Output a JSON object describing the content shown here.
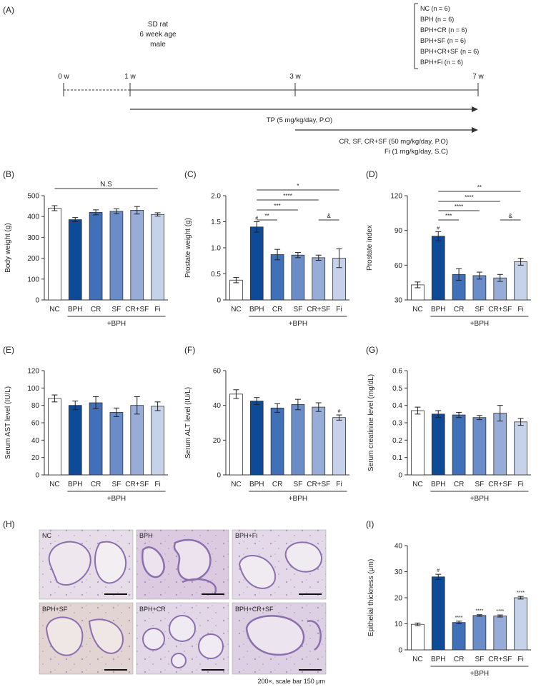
{
  "panel_labels": [
    "(A)",
    "(B)",
    "(C)",
    "(D)",
    "(E)",
    "(F)",
    "(G)",
    "(H)",
    "(I)"
  ],
  "timeline": {
    "animal": [
      "SD rat",
      "6 week age",
      "male"
    ],
    "groups": [
      "NC (n = 6)",
      "BPH (n = 6)",
      "BPH+CR (n = 6)",
      "BPH+SF (n = 6)",
      "BPH+CR+SF (n = 6)",
      "BPH+Fi (n = 6)"
    ],
    "weeks": [
      "0 w",
      "1 w",
      "3 w",
      "7 w"
    ],
    "tp_label": "TP (5 mg/kg/day, P.O)",
    "treatment_label": "CR, SF, CR+SF (50 mg/kg/day, P.O)",
    "fi_label": "Fi (1 mg/kg/day, S.C)"
  },
  "colors": {
    "bars": [
      "#ffffff",
      "#0d4a98",
      "#3f70b8",
      "#6a8cc9",
      "#97acd7",
      "#c6d1ea"
    ],
    "outline": "#333333"
  },
  "chart_data": [
    {
      "panel": "B",
      "type": "bar",
      "categories": [
        "NC",
        "BPH",
        "CR",
        "SF",
        "CR+SF",
        "Fi"
      ],
      "values": [
        440,
        385,
        420,
        425,
        430,
        410
      ],
      "errors": [
        12,
        10,
        12,
        12,
        18,
        8
      ],
      "ylabel": "Body weight (g)",
      "ylim": [
        0,
        500
      ],
      "yticks": [
        "0",
        "100",
        "200",
        "300",
        "400",
        "500"
      ],
      "group_label": "+BPH",
      "sig_marks": [],
      "sig_bars": [
        {
          "label": "N.S"
        }
      ]
    },
    {
      "panel": "C",
      "type": "bar",
      "categories": [
        "NC",
        "BPH",
        "CR",
        "SF",
        "CR+SF",
        "Fi"
      ],
      "values": [
        0.38,
        1.4,
        0.87,
        0.86,
        0.81,
        0.8
      ],
      "errors": [
        0.05,
        0.1,
        0.1,
        0.05,
        0.05,
        0.18
      ],
      "ylabel": "Prostate weight (g)",
      "ylim": [
        0,
        2.0
      ],
      "yticks": [
        "0",
        "0.5",
        "1.0",
        "1.5",
        "2.0"
      ],
      "group_label": "+BPH",
      "sig_marks": [
        "",
        "#",
        "",
        "",
        "",
        ""
      ],
      "sig_bars": [
        {
          "label": "*"
        },
        {
          "label": "****"
        },
        {
          "label": "***"
        },
        {
          "label": "**"
        },
        {
          "label": "&"
        }
      ]
    },
    {
      "panel": "D",
      "type": "bar",
      "categories": [
        "NC",
        "BPH",
        "CR",
        "SF",
        "CR+SF",
        "Fi"
      ],
      "values": [
        43,
        85,
        52,
        51,
        49,
        63
      ],
      "errors": [
        2.5,
        4,
        5,
        3,
        3,
        3
      ],
      "ylabel": "Prostate index",
      "ylim": [
        30,
        120
      ],
      "yticks": [
        "30",
        "60",
        "90",
        "120"
      ],
      "group_label": "+BPH",
      "sig_marks": [
        "",
        "#",
        "",
        "",
        "",
        ""
      ],
      "sig_bars": [
        {
          "label": "**"
        },
        {
          "label": "****"
        },
        {
          "label": "****"
        },
        {
          "label": "***"
        },
        {
          "label": "&"
        }
      ]
    },
    {
      "panel": "E",
      "type": "bar",
      "categories": [
        "NC",
        "BPH",
        "CR",
        "SF",
        "CR+SF",
        "Fi"
      ],
      "values": [
        88,
        80,
        83,
        72,
        80,
        79
      ],
      "errors": [
        4,
        5,
        7,
        5,
        10,
        5
      ],
      "ylabel": "Serum AST level (IU/L)",
      "ylim": [
        0,
        120
      ],
      "yticks": [
        "0",
        "20",
        "40",
        "60",
        "80",
        "100",
        "120"
      ],
      "group_label": "+BPH",
      "sig_marks": [],
      "sig_bars": []
    },
    {
      "panel": "F",
      "type": "bar",
      "categories": [
        "NC",
        "BPH",
        "CR",
        "SF",
        "CR+SF",
        "Fi"
      ],
      "values": [
        46.5,
        42.5,
        38.5,
        40.5,
        39,
        33
      ],
      "errors": [
        2.5,
        2,
        2.5,
        3,
        2.5,
        1.5
      ],
      "ylabel": "Serum ALT level (IU/L)",
      "ylim": [
        0,
        60
      ],
      "yticks": [
        "0",
        "20",
        "40",
        "60"
      ],
      "group_label": "+BPH",
      "sig_marks": [
        "",
        "",
        "",
        "",
        "",
        "#"
      ],
      "sig_bars": []
    },
    {
      "panel": "G",
      "type": "bar",
      "categories": [
        "NC",
        "BPH",
        "CR",
        "SF",
        "CR+SF",
        "Fi"
      ],
      "values": [
        0.37,
        0.35,
        0.345,
        0.33,
        0.355,
        0.305
      ],
      "errors": [
        0.02,
        0.02,
        0.015,
        0.012,
        0.045,
        0.02
      ],
      "ylabel": "Serum creatinine level (mg/dL)",
      "ylim": [
        0,
        0.6
      ],
      "yticks": [
        "0",
        "0.1",
        "0.2",
        "0.3",
        "0.4",
        "0.5",
        "0.6"
      ],
      "group_label": "+BPH",
      "sig_marks": [],
      "sig_bars": []
    },
    {
      "panel": "I",
      "type": "bar",
      "categories": [
        "NC",
        "BPH",
        "CR",
        "SF",
        "CR+SF",
        "Fi"
      ],
      "values": [
        9.8,
        28,
        10.5,
        13.2,
        13,
        20
      ],
      "errors": [
        0.5,
        1,
        0.5,
        0.3,
        0.4,
        0.5
      ],
      "ylabel": "Epithelial thickness (μm)",
      "ylim": [
        0,
        40
      ],
      "yticks": [
        "0",
        "10",
        "20",
        "30",
        "40"
      ],
      "group_label": "+BPH",
      "sig_marks": [
        "",
        "#",
        "****",
        "****",
        "****",
        "****"
      ],
      "sig_bars": []
    }
  ],
  "histology": {
    "labels": [
      "NC",
      "BPH",
      "BPH+Fi",
      "BPH+SF",
      "BPH+CR",
      "BPH+CR+SF"
    ],
    "caption": "200×, scale bar 150 μm"
  }
}
